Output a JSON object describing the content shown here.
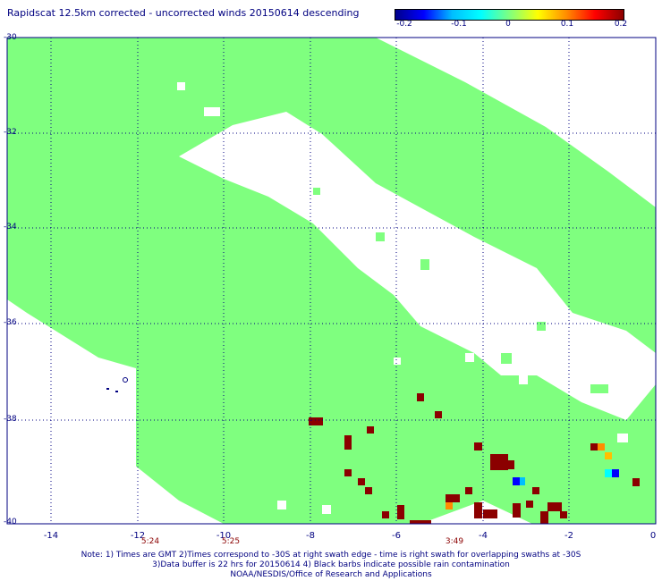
{
  "title": "Rapidscat 12.5km corrected - uncorrected winds 20150614 descending",
  "colorbar": {
    "ticks": [
      "-0.2",
      "-0.1",
      "0",
      "0.1",
      "0.2"
    ],
    "colors": [
      "#00008b",
      "#0000ff",
      "#00bfff",
      "#00ffff",
      "#7fff7f",
      "#ffff00",
      "#ff8c00",
      "#ff0000",
      "#8b0000"
    ]
  },
  "axes": {
    "x_ticks": [
      "-14",
      "-12",
      "-10",
      "-8",
      "-6",
      "-4",
      "-2",
      "0"
    ],
    "y_ticks": [
      "-30",
      "-32",
      "-34",
      "-36",
      "-38",
      "-40"
    ],
    "x_range": [
      -15,
      0
    ],
    "y_range": [
      -40,
      -30
    ]
  },
  "pass_times": [
    {
      "lon": -12,
      "label": "5:24"
    },
    {
      "lon": -10,
      "label": "5:25"
    },
    {
      "lon": -4,
      "label": "3:49"
    }
  ],
  "notes": {
    "line1": "Note: 1) Times are GMT 2)Times correspond to -30S at right swath edge - time is right swath for overlapping swaths at -30S",
    "line2": "3)Data buffer is 22 hrs for 20150614 4) Black barbs indicate possible rain contamination",
    "line3": "NOAA/NESDIS/Office of Research and Applications"
  },
  "colors": {
    "zero_difference": "#7fff7f",
    "positive_large": "#8b0000",
    "positive_medium": "#ff8c00",
    "negative": "#0000ff",
    "text": "#000080"
  }
}
